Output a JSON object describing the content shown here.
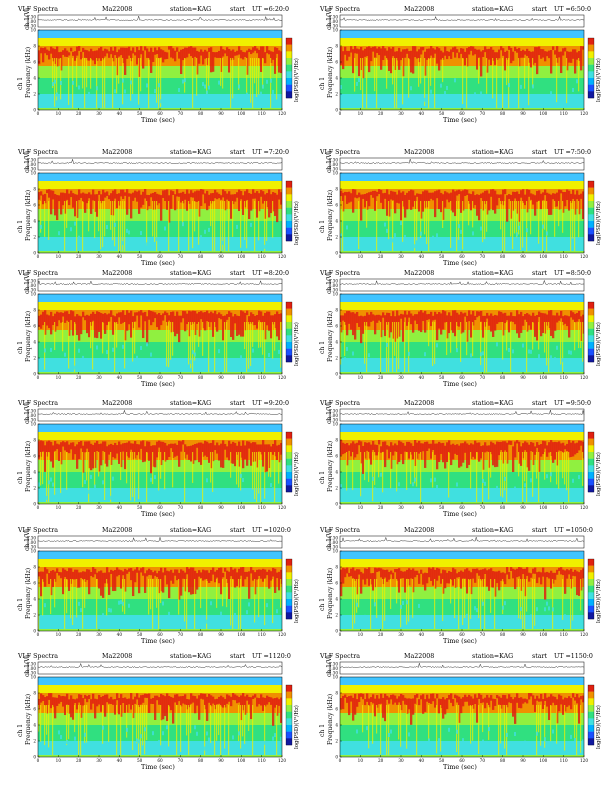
{
  "colors": {
    "background": "#40c4ff",
    "scale": [
      "#1018a0",
      "#1a50ff",
      "#00b0ff",
      "#40e0e0",
      "#30e080",
      "#90f040",
      "#f0f000",
      "#f09000",
      "#e02010"
    ]
  },
  "common": {
    "heading": "VLF Spectra",
    "date": "Ma22008",
    "station": "station=KAG",
    "start": "start",
    "ch_label": "ch 1(V)",
    "freq_label_ch": "ch 1",
    "freq_label": "Frequency (kHz)",
    "time_label": "Time (sec)",
    "colorbar_label": "log(PSD)(V²/Hz)",
    "ch_ticks": [
      "0.30",
      "0.00",
      "-0.30"
    ]
  },
  "panels": [
    {
      "ut": "UT =6:20:0"
    },
    {
      "ut": "UT =6:50:0"
    },
    {
      "ut": "UT =7:20:0"
    },
    {
      "ut": "UT =7:50:0"
    },
    {
      "ut": "UT =8:20:0"
    },
    {
      "ut": "UT =8:50:0"
    },
    {
      "ut": "UT =9:20:0"
    },
    {
      "ut": "UT =9:50:0"
    },
    {
      "ut": "UT =1020:0"
    },
    {
      "ut": "UT =1050:0"
    },
    {
      "ut": "UT =1120:0"
    },
    {
      "ut": "UT =1150:0"
    }
  ],
  "chart_data": {
    "type": "heatmap",
    "x_label": "Time (sec)",
    "y_label": "Frequency (kHz)",
    "x_range": [
      0,
      120
    ],
    "y_range": [
      0,
      10
    ],
    "x_ticks": [
      "0",
      "10",
      "20",
      "30",
      "40",
      "50",
      "60",
      "70",
      "80",
      "90",
      "100",
      "110",
      "120"
    ],
    "y_ticks": [
      "0",
      "2",
      "4",
      "6",
      "8",
      "10"
    ],
    "colorbar_label": "log(PSD)(V²/Hz)"
  }
}
